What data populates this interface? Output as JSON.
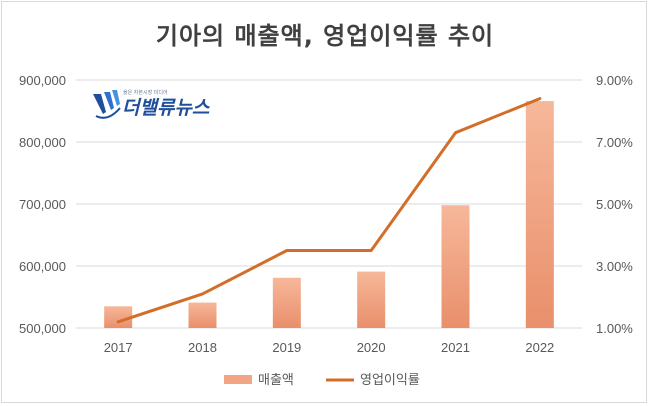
{
  "page": {
    "title": "기아의 매출액, 영업이익률 추이"
  },
  "logo": {
    "name": "더밸류뉴스",
    "tagline": "옳은 자본시장 미디어"
  },
  "chart_data": {
    "type": "bar+line",
    "title": "기아의 매출액, 영업이익률 추이",
    "categories": [
      "2017",
      "2018",
      "2019",
      "2020",
      "2021",
      "2022"
    ],
    "series": [
      {
        "name": "매출액",
        "type": "bar",
        "axis": "left",
        "values": [
          535000,
          541000,
          581000,
          591000,
          698000,
          866000
        ],
        "color": "#f2a584"
      },
      {
        "name": "영업이익률",
        "type": "line",
        "axis": "right",
        "values": [
          1.2,
          2.1,
          3.5,
          3.5,
          7.3,
          8.4
        ],
        "color": "#d26e2a"
      }
    ],
    "y_left": {
      "ylim": [
        500000,
        900000
      ],
      "ticks": [
        "500,000",
        "600,000",
        "700,000",
        "800,000",
        "900,000"
      ]
    },
    "y_right": {
      "ylim": [
        1.0,
        9.0
      ],
      "ticks": [
        "1.00%",
        "3.00%",
        "5.00%",
        "7.00%",
        "9.00%"
      ]
    },
    "grid": true,
    "legend_position": "bottom"
  }
}
